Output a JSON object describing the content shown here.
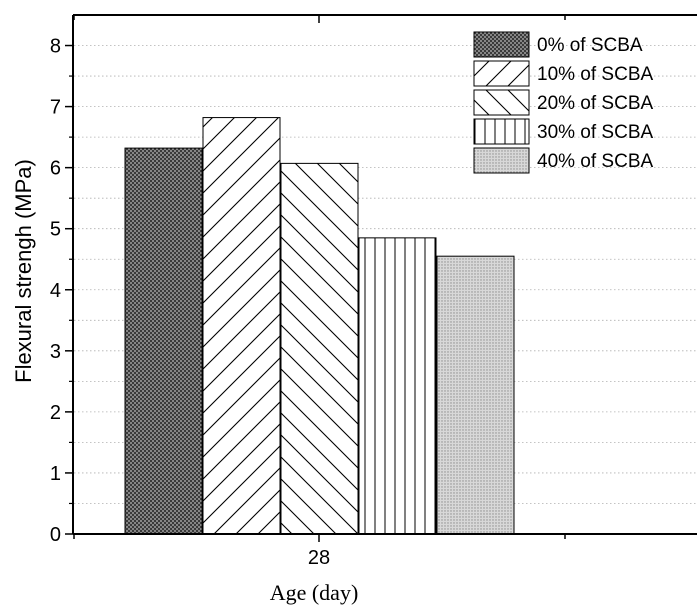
{
  "chart_data": {
    "type": "bar",
    "categories": [
      "28"
    ],
    "series": [
      {
        "name": "0% of SCBA",
        "values": [
          6.32
        ],
        "pattern": "dense-dots"
      },
      {
        "name": "10% of SCBA",
        "values": [
          6.82
        ],
        "pattern": "forward-diagonal"
      },
      {
        "name": "20% of SCBA",
        "values": [
          6.07
        ],
        "pattern": "backward-diagonal"
      },
      {
        "name": "30% of SCBA",
        "values": [
          4.85
        ],
        "pattern": "vertical-lines"
      },
      {
        "name": "40% of SCBA",
        "values": [
          4.55
        ],
        "pattern": "light-dots"
      }
    ],
    "xlabel": "Age (day)",
    "ylabel": "Flexural strengh (MPa)",
    "ylim": [
      0,
      8.5
    ],
    "yticks": [
      "0",
      "1",
      "2",
      "3",
      "4",
      "5",
      "6",
      "7",
      "8"
    ],
    "grid": "dotted horizontal",
    "legend_position": "top-right"
  }
}
